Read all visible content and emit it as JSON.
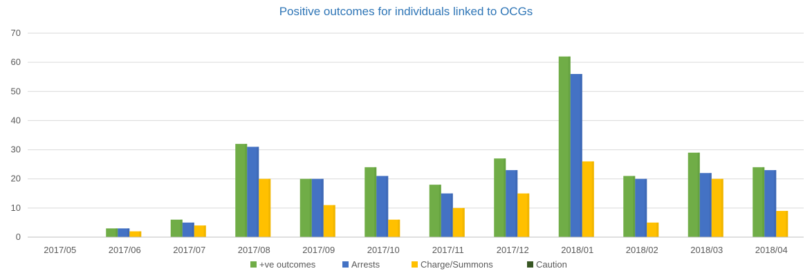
{
  "chart_data": {
    "type": "bar",
    "title": "Positive outcomes for individuals linked to OCGs",
    "categories": [
      "2017/05",
      "2017/06",
      "2017/07",
      "2017/08",
      "2017/09",
      "2017/10",
      "2017/11",
      "2017/12",
      "2018/01",
      "2018/02",
      "2018/03",
      "2018/04"
    ],
    "series": [
      {
        "name": "+ve outcomes",
        "color": "#70ad47",
        "values": [
          0,
          3,
          6,
          32,
          20,
          24,
          18,
          27,
          62,
          21,
          29,
          24
        ]
      },
      {
        "name": "Arrests",
        "color": "#4472c4",
        "values": [
          0,
          3,
          5,
          31,
          20,
          21,
          15,
          23,
          56,
          20,
          22,
          23
        ]
      },
      {
        "name": "Charge/Summons",
        "color": "#ffc000",
        "values": [
          0,
          2,
          4,
          20,
          11,
          6,
          10,
          15,
          26,
          5,
          20,
          9
        ]
      },
      {
        "name": "Caution",
        "color": "#375623",
        "values": [
          0,
          0,
          0,
          0,
          0,
          0,
          0,
          0,
          0,
          0,
          0,
          0
        ]
      }
    ],
    "ylim": [
      0,
      70
    ],
    "yticks": [
      "0",
      "10",
      "20",
      "30",
      "40",
      "50",
      "60",
      "70"
    ],
    "grid": true,
    "legend_position": "bottom"
  }
}
